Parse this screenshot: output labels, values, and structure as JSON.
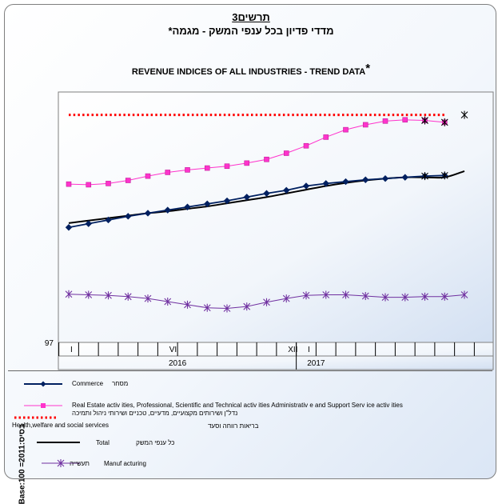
{
  "title": {
    "number": "תרשים3",
    "hebrew": "מדדי פדיון בכל ענפי המשק - מגמה*",
    "english": "REVENUE  INDICES  OF  ALL  INDUSTRIES  - TREND  DATA",
    "english_star": "*"
  },
  "chart_data": {
    "type": "line",
    "ylabel": "Base:100 =2011:בסיס",
    "ytick_label": "97",
    "ylim": [
      97,
      140
    ],
    "x": [
      1,
      2,
      3,
      4,
      5,
      6,
      7,
      8,
      9,
      10,
      11,
      12,
      13,
      14,
      15,
      16,
      17,
      18,
      19,
      20,
      21
    ],
    "xtick_labels": [
      {
        "label": "I",
        "at": 1
      },
      {
        "label": "VI",
        "at": 6
      },
      {
        "label": "XII",
        "at": 12
      },
      {
        "label": "I",
        "at": 13
      }
    ],
    "year_labels": [
      {
        "label": "2016",
        "at": 6.5
      },
      {
        "label": "2017",
        "at": 13.5
      }
    ],
    "grid": false,
    "legend_position": "bottom",
    "series": [
      {
        "name": "Commerce",
        "name_heb": "מסחר",
        "color": "#002060",
        "marker": "diamond",
        "values": [
          115.6,
          116.2,
          116.8,
          117.4,
          117.9,
          118.4,
          118.9,
          119.4,
          119.9,
          120.5,
          121.1,
          121.6,
          122.3,
          122.7,
          123.0,
          123.3,
          123.5,
          123.7,
          123.9,
          124.0,
          null
        ]
      },
      {
        "name": "Real Estate activ ities, Professional, Scientific and Technical activ ities  Administrativ e and Support Serv ice activ ities",
        "name_heb": "נדל\"ן ושירותים מקצועיים, מדעיים, טכניים ושירותי ניהול ותמיכה",
        "color": "#ff33cc",
        "marker": "square",
        "values": [
          122.6,
          122.5,
          122.7,
          123.2,
          123.9,
          124.5,
          124.9,
          125.2,
          125.5,
          126.0,
          126.6,
          127.6,
          128.8,
          130.2,
          131.4,
          132.2,
          132.8,
          133.0,
          132.9,
          132.6,
          null
        ]
      },
      {
        "name": "Health,welfare and social services",
        "name_heb": "בריאות רווחה וסעד",
        "color": "#ff0000",
        "marker": "dotted",
        "values": [
          133.8,
          133.8,
          133.8,
          133.8,
          133.8,
          133.8,
          133.8,
          133.8,
          133.8,
          133.8,
          133.8,
          133.8,
          133.8,
          133.8,
          133.8,
          133.8,
          133.8,
          133.8,
          133.8,
          133.8,
          null
        ]
      },
      {
        "name": "Total",
        "name_heb": "כל ענפי המשק",
        "color": "#000000",
        "marker": "none",
        "values": [
          116.3,
          116.7,
          117.1,
          117.5,
          117.9,
          118.2,
          118.6,
          119.0,
          119.5,
          120.0,
          120.5,
          121.1,
          121.7,
          122.3,
          122.8,
          123.2,
          123.5,
          123.7,
          123.7,
          123.7,
          124.7
        ]
      },
      {
        "name": "Manuf acturing",
        "name_heb": "תעשייה",
        "color": "#7030a0",
        "marker": "asterisk",
        "values": [
          104.8,
          104.7,
          104.6,
          104.4,
          104.1,
          103.6,
          103.1,
          102.6,
          102.5,
          102.8,
          103.5,
          104.1,
          104.6,
          104.7,
          104.7,
          104.5,
          104.3,
          104.3,
          104.4,
          104.4,
          104.7
        ]
      }
    ]
  },
  "legend": {
    "commerce": {
      "en": "Commerce",
      "heb": "מסחר"
    },
    "realestate": {
      "en": "Real Estate activ ities, Professional, Scientific and Technical activ ities  Administrativ e and Support Serv ice activ ities",
      "heb": "נדל\"ן ושירותים מקצועיים, מדעיים, טכניים ושירותי ניהול ותמיכה"
    },
    "health": {
      "en": "Health,welfare and social services",
      "heb": "בריאות רווחה וסעד"
    },
    "total": {
      "en": "Total",
      "heb": "כל ענפי המשק"
    },
    "manufacturing": {
      "en": "Manuf acturing",
      "heb": "תעשייה"
    }
  }
}
